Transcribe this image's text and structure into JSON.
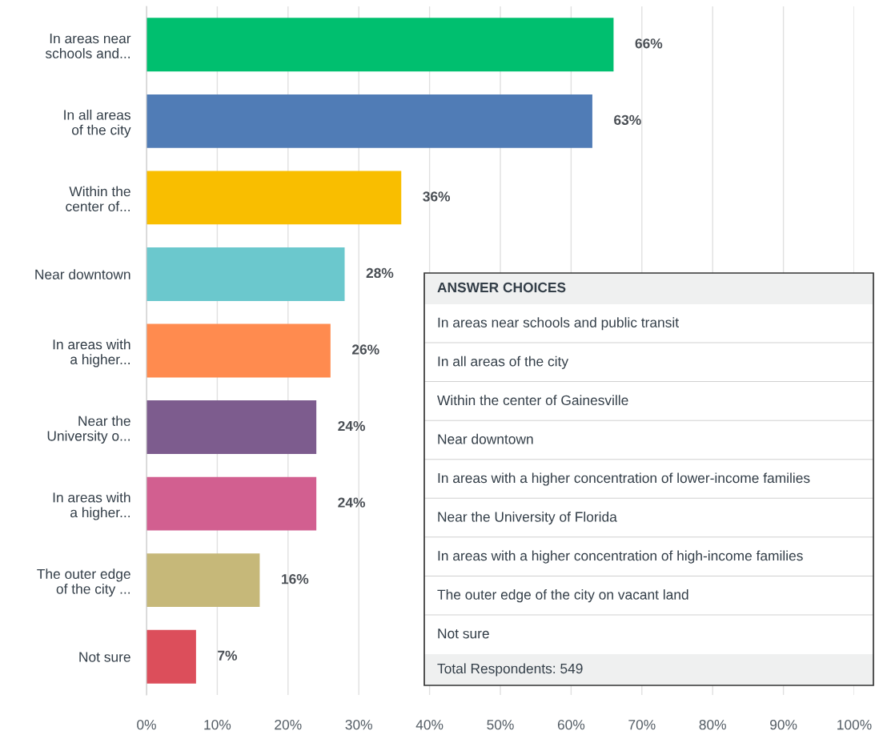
{
  "chart_data": {
    "type": "bar",
    "orientation": "horizontal",
    "categories": [
      "In areas near\nschools and...",
      "In all areas\nof the city",
      "Within the\ncenter of...",
      "Near downtown",
      "In areas with\na higher...",
      "Near the\nUniversity o...",
      "In areas with\na higher...",
      "The outer edge\nof the city ...",
      "Not sure"
    ],
    "values": [
      66,
      63,
      36,
      28,
      26,
      24,
      24,
      16,
      7
    ],
    "value_labels": [
      "66%",
      "63%",
      "36%",
      "28%",
      "26%",
      "24%",
      "24%",
      "16%",
      "7%"
    ],
    "colors": [
      "#00bf6f",
      "#507cb6",
      "#f9be00",
      "#6bc8cd",
      "#ff8b4f",
      "#7d5c8e",
      "#d25f90",
      "#c6b879",
      "#dc4e5b"
    ],
    "xlim": [
      0,
      100
    ],
    "xticks": [
      {
        "value": 0,
        "label": "0%"
      },
      {
        "value": 10,
        "label": "10%"
      },
      {
        "value": 20,
        "label": "20%"
      },
      {
        "value": 30,
        "label": "30%"
      },
      {
        "value": 40,
        "label": "40%"
      },
      {
        "value": 50,
        "label": "50%"
      },
      {
        "value": 60,
        "label": "60%"
      },
      {
        "value": 70,
        "label": "70%"
      },
      {
        "value": 80,
        "label": "80%"
      },
      {
        "value": 90,
        "label": "90%"
      },
      {
        "value": 100,
        "label": "100%"
      }
    ],
    "grid": "x",
    "annotations": [
      "ANSWER CHOICES",
      "In areas near schools and public transit",
      "In all areas of the city",
      "Within the center of Gainesville",
      "Near downtown",
      "In areas with a higher concentration of lower-income families",
      "Near the University of Florida",
      "In areas with a higher concentration of high-income families",
      "The outer edge of the city on vacant land",
      "Not sure",
      "Total Respondents: 549"
    ]
  }
}
